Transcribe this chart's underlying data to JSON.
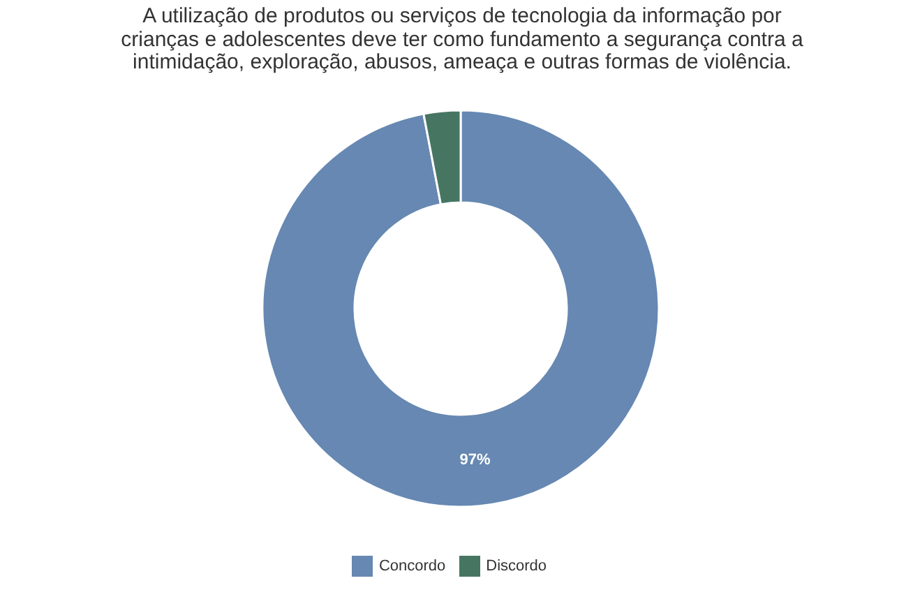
{
  "chart_data": {
    "type": "donut",
    "title": "A utilização de produtos ou serviços de tecnologia da informação por crianças e adolescentes deve ter como fundamento a segurança contra a intimidação, exploração, abusos, ameaça e outras formas de violência.",
    "categories": [
      "Concordo",
      "Discordo"
    ],
    "values": [
      97,
      3
    ],
    "colors": [
      "#6688b2",
      "#467662"
    ],
    "value_labels": [
      "97%",
      null
    ],
    "legend": "bottom"
  }
}
